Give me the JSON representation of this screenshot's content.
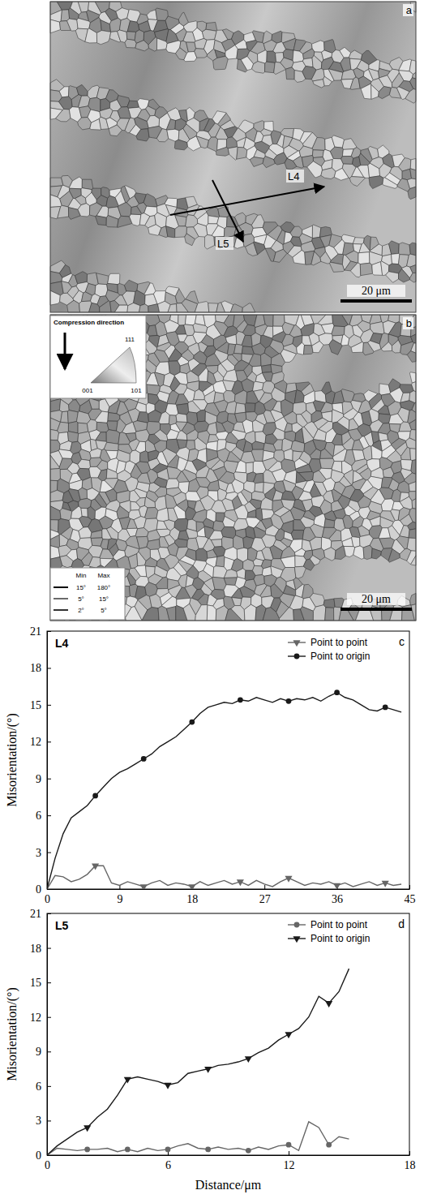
{
  "maps": [
    {
      "letter": "a",
      "lines": [
        "L4",
        "L5"
      ],
      "scale_bar": "20 μm"
    },
    {
      "letter": "b",
      "inset": {
        "title": "Compression direction",
        "poles": [
          "111",
          "001",
          "101"
        ]
      },
      "boundary_legend": {
        "header": [
          "Min",
          "Max"
        ],
        "rows": [
          [
            "15°",
            "180°"
          ],
          [
            "5°",
            "15°"
          ],
          [
            "2°",
            "5°"
          ]
        ]
      },
      "scale_bar": "20 μm"
    }
  ],
  "chart_data": [
    {
      "type": "line",
      "title": "L4",
      "annotations": [
        "c"
      ],
      "y_label": "Misorientation/(°)",
      "xlim": [
        0,
        45
      ],
      "xticks": [
        0,
        9,
        18,
        27,
        36,
        45
      ],
      "ylim": [
        0,
        21
      ],
      "yticks": [
        0,
        3,
        6,
        9,
        12,
        15,
        18,
        21
      ],
      "legend": "upper right",
      "x": [
        0,
        1,
        2,
        3,
        4,
        5,
        6,
        7,
        8,
        9,
        10,
        11,
        12,
        13,
        14,
        15,
        16,
        17,
        18,
        19,
        20,
        21,
        22,
        23,
        24,
        25,
        26,
        27,
        28,
        29,
        30,
        31,
        32,
        33,
        34,
        35,
        36,
        37,
        38,
        39,
        40,
        41,
        42,
        43,
        44
      ],
      "series": [
        {
          "name": "Point to point",
          "color": "#666666",
          "marker": "triangle-down",
          "line_style": "solid",
          "values": [
            0,
            1.1,
            1.0,
            0.6,
            0.8,
            1.2,
            1.9,
            1.9,
            0.5,
            0.3,
            0.6,
            0.4,
            0.2,
            0.5,
            0.7,
            0.3,
            0.5,
            0.4,
            0.2,
            0.6,
            0.3,
            0.5,
            0.7,
            0.4,
            0.6,
            0.3,
            0.7,
            0.4,
            0.2,
            0.6,
            0.9,
            0.6,
            0.3,
            0.5,
            0.4,
            0.6,
            0.3,
            0.5,
            0.2,
            0.4,
            0.6,
            0.3,
            0.5,
            0.3,
            0.4
          ]
        },
        {
          "name": "Point to origin",
          "color": "#1a1a1a",
          "marker": "circle",
          "line_style": "solid",
          "values": [
            0,
            2.5,
            4.5,
            5.8,
            6.3,
            6.8,
            7.6,
            8.3,
            9.0,
            9.5,
            9.8,
            10.2,
            10.6,
            11.0,
            11.6,
            12.0,
            12.4,
            13.0,
            13.6,
            14.3,
            14.8,
            15.0,
            15.2,
            15.1,
            15.4,
            15.3,
            15.6,
            15.4,
            15.2,
            15.5,
            15.3,
            15.5,
            15.4,
            15.6,
            15.3,
            15.7,
            16.0,
            15.6,
            15.4,
            15.0,
            14.6,
            14.5,
            14.8,
            14.6,
            14.4
          ]
        }
      ]
    },
    {
      "type": "line",
      "title": "L5",
      "annotations": [
        "d"
      ],
      "x_label": "Distance/μm",
      "y_label": "Misorientation/(°)",
      "xlim": [
        0,
        18
      ],
      "xticks": [
        0,
        6,
        12,
        18
      ],
      "ylim": [
        0,
        21
      ],
      "yticks": [
        0,
        3,
        6,
        9,
        12,
        15,
        18,
        21
      ],
      "legend": "upper right",
      "x": [
        0,
        0.5,
        1,
        1.5,
        2,
        2.5,
        3,
        3.5,
        4,
        4.5,
        5,
        5.5,
        6,
        6.5,
        7,
        7.5,
        8,
        8.5,
        9,
        9.5,
        10,
        10.5,
        11,
        11.5,
        12,
        12.5,
        13,
        13.5,
        14,
        14.5,
        15
      ],
      "series": [
        {
          "name": "Point to point",
          "color": "#666666",
          "marker": "circle",
          "line_style": "solid",
          "values": [
            0,
            0.6,
            0.5,
            0.4,
            0.5,
            0.5,
            0.6,
            0.3,
            0.5,
            0.3,
            0.6,
            0.4,
            0.5,
            0.8,
            1.0,
            0.6,
            0.5,
            0.7,
            0.5,
            0.6,
            0.4,
            0.7,
            0.5,
            0.8,
            0.9,
            0.4,
            2.9,
            2.4,
            0.9,
            1.6,
            1.4
          ]
        },
        {
          "name": "Point to origin",
          "color": "#1a1a1a",
          "marker": "triangle-down",
          "line_style": "solid",
          "values": [
            0,
            0.8,
            1.4,
            2.0,
            2.4,
            3.3,
            4.0,
            5.2,
            6.6,
            6.8,
            6.6,
            6.4,
            6.1,
            6.3,
            7.1,
            7.3,
            7.5,
            7.8,
            7.9,
            8.1,
            8.4,
            8.9,
            9.3,
            10.0,
            10.5,
            11.0,
            12.0,
            13.8,
            13.2,
            14.2,
            16.2
          ]
        }
      ]
    }
  ]
}
